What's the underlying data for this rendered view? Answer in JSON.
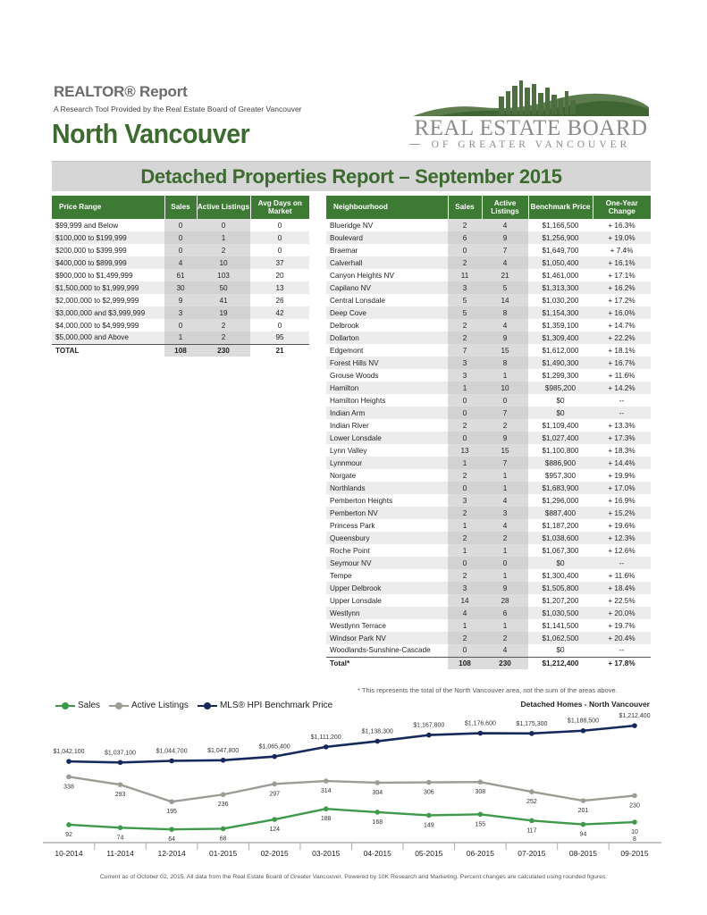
{
  "header": {
    "report_label": "REALTOR® Report",
    "subtitle": "A Research Tool Provided by the Real Estate Board of Greater Vancouver",
    "area": "North Vancouver"
  },
  "logo": {
    "text": "REAL ESTATE BOARD",
    "subtext": "OF GREATER VANCOUVER"
  },
  "banner": {
    "title": "Detached Properties Report – September 2015"
  },
  "price_table": {
    "headers": [
      "Price Range",
      "Sales",
      "Active Listings",
      "Avg Days on Market"
    ],
    "rows": [
      [
        "$99,999 and Below",
        "0",
        "0",
        "0"
      ],
      [
        "$100,000 to $199,999",
        "0",
        "1",
        "0"
      ],
      [
        "$200,000 to $399,999",
        "0",
        "2",
        "0"
      ],
      [
        "$400,000 to $899,999",
        "4",
        "10",
        "37"
      ],
      [
        "$900,000 to $1,499,999",
        "61",
        "103",
        "20"
      ],
      [
        "$1,500,000 to $1,999,999",
        "30",
        "50",
        "13"
      ],
      [
        "$2,000,000 to $2,999,999",
        "9",
        "41",
        "26"
      ],
      [
        "$3,000,000 and $3,999,999",
        "3",
        "19",
        "42"
      ],
      [
        "$4,000,000 to $4,999,999",
        "0",
        "2",
        "0"
      ],
      [
        "$5,000,000 and Above",
        "1",
        "2",
        "95"
      ]
    ],
    "total": [
      "TOTAL",
      "108",
      "230",
      "21"
    ]
  },
  "neighbourhood_table": {
    "headers": [
      "Neighbourhood",
      "Sales",
      "Active Listings",
      "Benchmark Price",
      "One-Year Change"
    ],
    "rows": [
      [
        "Blueridge NV",
        "2",
        "4",
        "$1,166,500",
        "+ 16.3%"
      ],
      [
        "Boulevard",
        "6",
        "9",
        "$1,256,900",
        "+ 19.0%"
      ],
      [
        "Braemar",
        "0",
        "7",
        "$1,649,700",
        "+ 7.4%"
      ],
      [
        "Calverhall",
        "2",
        "4",
        "$1,050,400",
        "+ 16.1%"
      ],
      [
        "Canyon Heights NV",
        "11",
        "21",
        "$1,461,000",
        "+ 17.1%"
      ],
      [
        "Capilano NV",
        "3",
        "5",
        "$1,313,300",
        "+ 16.2%"
      ],
      [
        "Central Lonsdale",
        "5",
        "14",
        "$1,030,200",
        "+ 17.2%"
      ],
      [
        "Deep Cove",
        "5",
        "8",
        "$1,154,300",
        "+ 16.0%"
      ],
      [
        "Delbrook",
        "2",
        "4",
        "$1,359,100",
        "+ 14.7%"
      ],
      [
        "Dollarton",
        "2",
        "9",
        "$1,309,400",
        "+ 22.2%"
      ],
      [
        "Edgemont",
        "7",
        "15",
        "$1,612,000",
        "+ 18.1%"
      ],
      [
        "Forest Hills NV",
        "3",
        "8",
        "$1,490,300",
        "+ 16.7%"
      ],
      [
        "Grouse Woods",
        "3",
        "1",
        "$1,299,300",
        "+ 11.6%"
      ],
      [
        "Hamilton",
        "1",
        "10",
        "$985,200",
        "+ 14.2%"
      ],
      [
        "Hamilton Heights",
        "0",
        "0",
        "$0",
        "--"
      ],
      [
        "Indian Arm",
        "0",
        "7",
        "$0",
        "--"
      ],
      [
        "Indian River",
        "2",
        "2",
        "$1,109,400",
        "+ 13.3%"
      ],
      [
        "Lower Lonsdale",
        "0",
        "9",
        "$1,027,400",
        "+ 17.3%"
      ],
      [
        "Lynn Valley",
        "13",
        "15",
        "$1,100,800",
        "+ 18.3%"
      ],
      [
        "Lynnmour",
        "1",
        "7",
        "$886,900",
        "+ 14.4%"
      ],
      [
        "Norgate",
        "2",
        "1",
        "$957,300",
        "+ 19.9%"
      ],
      [
        "Northlands",
        "0",
        "1",
        "$1,683,900",
        "+ 17.0%"
      ],
      [
        "Pemberton Heights",
        "3",
        "4",
        "$1,296,000",
        "+ 16.9%"
      ],
      [
        "Pemberton NV",
        "2",
        "3",
        "$887,400",
        "+ 15.2%"
      ],
      [
        "Princess Park",
        "1",
        "4",
        "$1,187,200",
        "+ 19.6%"
      ],
      [
        "Queensbury",
        "2",
        "2",
        "$1,038,600",
        "+ 12.3%"
      ],
      [
        "Roche Point",
        "1",
        "1",
        "$1,067,300",
        "+ 12.6%"
      ],
      [
        "Seymour NV",
        "0",
        "0",
        "$0",
        "--"
      ],
      [
        "Tempe",
        "2",
        "1",
        "$1,300,400",
        "+ 11.6%"
      ],
      [
        "Upper Delbrook",
        "3",
        "9",
        "$1,505,800",
        "+ 18.4%"
      ],
      [
        "Upper Lonsdale",
        "14",
        "28",
        "$1,207,200",
        "+ 22.5%"
      ],
      [
        "Westlynn",
        "4",
        "6",
        "$1,030,500",
        "+ 20.0%"
      ],
      [
        "Westlynn Terrace",
        "1",
        "1",
        "$1,141,500",
        "+ 19.7%"
      ],
      [
        "Windsor Park NV",
        "2",
        "2",
        "$1,062,500",
        "+ 20.4%"
      ],
      [
        "Woodlands-Sunshine-Cascade",
        "0",
        "4",
        "$0",
        "--"
      ]
    ],
    "total": [
      "Total*",
      "108",
      "230",
      "$1,212,400",
      "+ 17.8%"
    ]
  },
  "footnote": "* This represents the total of the North Vancouver area, not the sum of the areas above.",
  "chart_title": "Detached Homes - North Vancouver",
  "colors": {
    "green_header": "#3d7a34",
    "title_green": "#3c6b2f",
    "sales": "#3e9a4a",
    "listings": "#9c9c96",
    "hpi": "#16295c"
  },
  "chart_data": {
    "type": "line",
    "title": "Detached Homes - North Vancouver",
    "categories": [
      "10-2014",
      "11-2014",
      "12-2014",
      "01-2015",
      "02-2015",
      "03-2015",
      "04-2015",
      "05-2015",
      "06-2015",
      "07-2015",
      "08-2015",
      "09-2015"
    ],
    "series": [
      {
        "name": "Sales",
        "values": [
          92,
          74,
          64,
          68,
          124,
          188,
          168,
          149,
          155,
          117,
          94,
          108
        ],
        "labels": [
          "92",
          "74",
          "64",
          "68",
          "124",
          "188",
          "168",
          "149",
          "155",
          "117",
          "94",
          "10\n8"
        ]
      },
      {
        "name": "Active Listings",
        "values": [
          338,
          293,
          195,
          236,
          297,
          314,
          304,
          306,
          308,
          252,
          201,
          230
        ],
        "labels": [
          "338",
          "293",
          "195",
          "236",
          "297",
          "314",
          "304",
          "306",
          "308",
          "252",
          "201",
          "230"
        ]
      },
      {
        "name": "MLS® HPI Benchmark Price",
        "values": [
          1042100,
          1037100,
          1044700,
          1047800,
          1065400,
          1111200,
          1138300,
          1167800,
          1176600,
          1175300,
          1188500,
          1212400
        ],
        "labels": [
          "$1,042,100",
          "$1,037,100",
          "$1,044,700",
          "$1,047,800",
          "$1,065,400",
          "$1,111,200",
          "$1,138,300",
          "$1,167,800",
          "$1,176,600",
          "$1,175,300",
          "$1,188,500",
          "$1,212,400"
        ]
      }
    ],
    "legend": "top-left",
    "grid": false
  },
  "footer": "Current as of October 02, 2015. All data from the Real Estate Board of Greater Vancouver. Powered by 10K Research and Marketing. Percent changes are calculated using rounded figures."
}
